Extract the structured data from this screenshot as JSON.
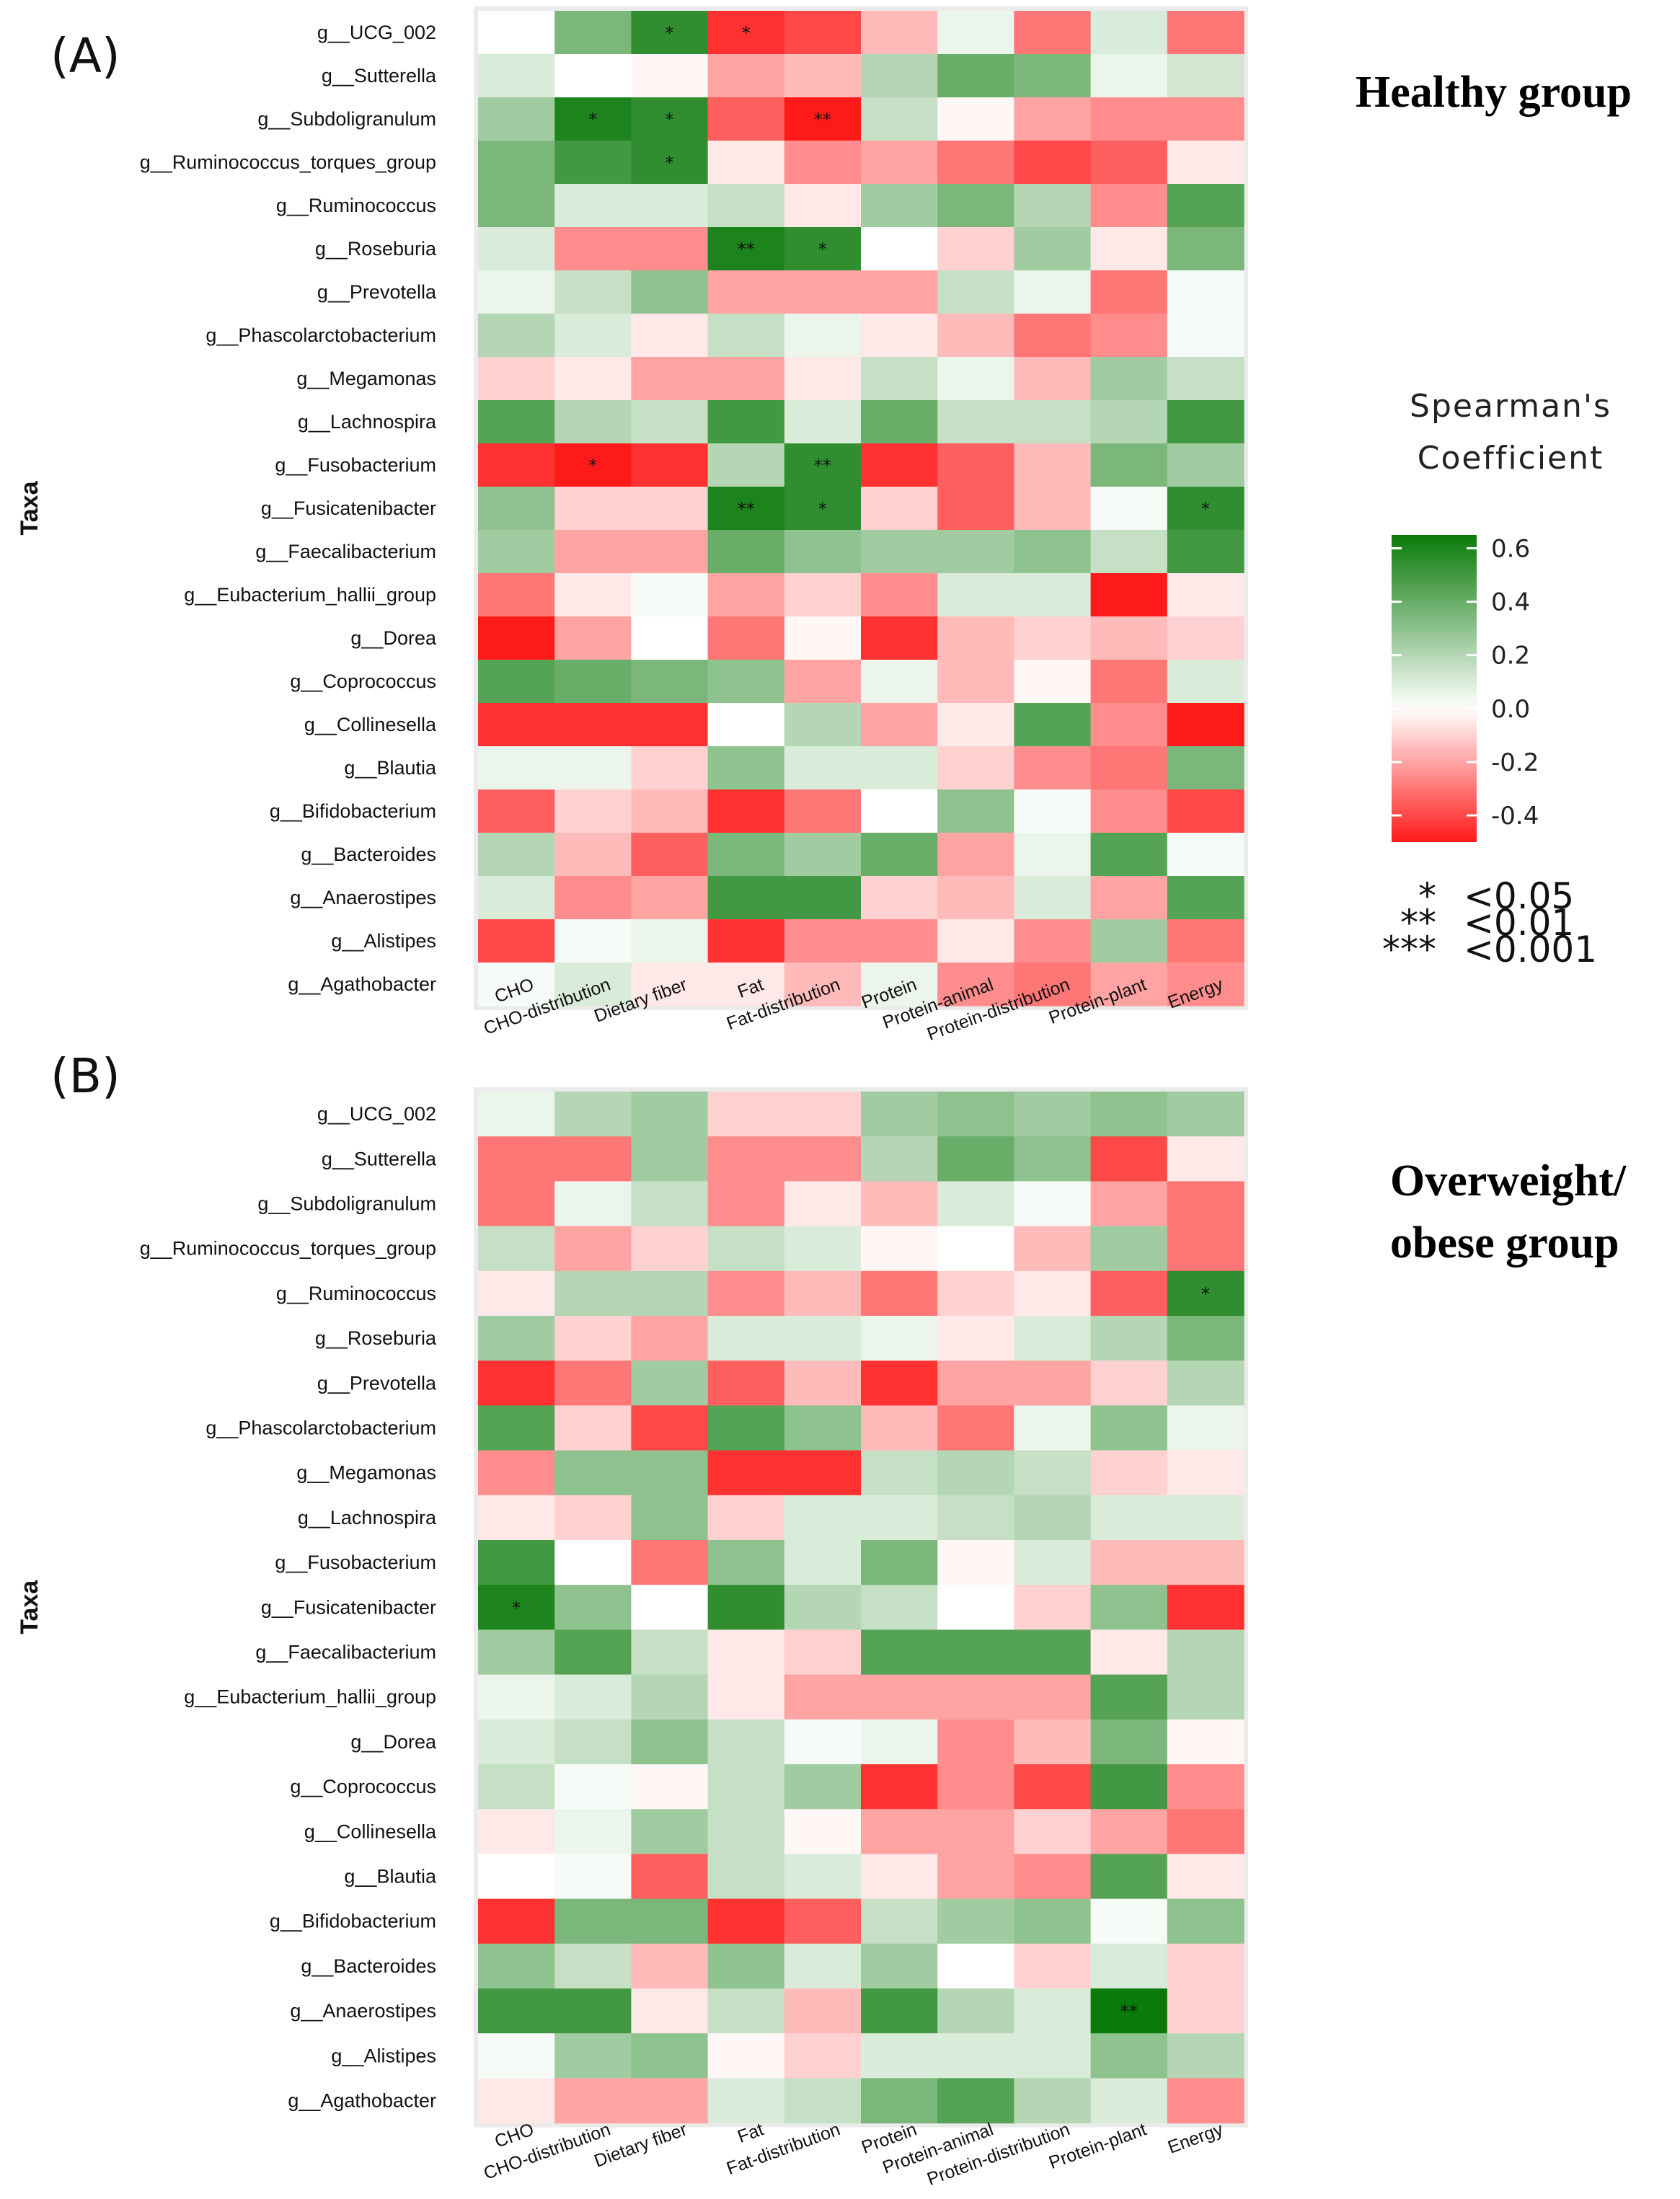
{
  "chart_data": [
    {
      "type": "heatmap",
      "panel_label": "(A)",
      "group_title": "Healthy group",
      "ylabel": "Taxa",
      "rows": [
        "g__UCG_002",
        "g__Sutterella",
        "g__Subdoligranulum",
        "g__Ruminococcus_torques_group",
        "g__Ruminococcus",
        "g__Roseburia",
        "g__Prevotella",
        "g__Phascolarctobacterium",
        "g__Megamonas",
        "g__Lachnospira",
        "g__Fusobacterium",
        "g__Fusicatenibacter",
        "g__Faecalibacterium",
        "g__Eubacterium_hallii_group",
        "g__Dorea",
        "g__Coprococcus",
        "g__Collinesella",
        "g__Blautia",
        "g__Bifidobacterium",
        "g__Bacteroides",
        "g__Anaerostipes",
        "g__Alistipes",
        "g__Agathobacter"
      ],
      "columns": [
        "CHO",
        "CHO-distribution",
        "Dietary fiber",
        "Fat",
        "Fat-distribution",
        "Protein",
        "Protein-animal",
        "Protein-distribution",
        "Protein-plant",
        "Energy"
      ],
      "values": [
        [
          0.0,
          0.35,
          0.55,
          -0.45,
          -0.4,
          -0.15,
          0.05,
          -0.3,
          0.1,
          -0.3
        ],
        [
          0.1,
          0.0,
          -0.02,
          -0.2,
          -0.15,
          0.2,
          0.4,
          0.35,
          0.05,
          0.12
        ],
        [
          0.25,
          0.6,
          0.55,
          -0.35,
          -0.55,
          0.15,
          -0.02,
          -0.2,
          -0.25,
          -0.25
        ],
        [
          0.35,
          0.5,
          0.55,
          -0.05,
          -0.25,
          -0.2,
          -0.3,
          -0.4,
          -0.35,
          -0.05
        ],
        [
          0.35,
          0.1,
          0.1,
          0.15,
          -0.05,
          0.25,
          0.35,
          0.2,
          -0.25,
          0.45
        ],
        [
          0.1,
          -0.25,
          -0.25,
          0.6,
          0.55,
          0.0,
          -0.1,
          0.25,
          -0.05,
          0.35
        ],
        [
          0.05,
          0.15,
          0.3,
          -0.2,
          -0.2,
          -0.2,
          0.15,
          0.05,
          -0.3,
          0.02
        ],
        [
          0.2,
          0.1,
          -0.05,
          0.15,
          0.05,
          -0.05,
          -0.15,
          -0.3,
          -0.25,
          0.02
        ],
        [
          -0.1,
          -0.05,
          -0.2,
          -0.2,
          -0.05,
          0.15,
          0.05,
          -0.15,
          0.25,
          0.15
        ],
        [
          0.45,
          0.2,
          0.15,
          0.5,
          0.1,
          0.4,
          0.15,
          0.15,
          0.2,
          0.5
        ],
        [
          -0.45,
          -0.5,
          -0.45,
          0.2,
          0.55,
          -0.45,
          -0.35,
          -0.15,
          0.35,
          0.25
        ],
        [
          0.3,
          -0.1,
          -0.1,
          0.6,
          0.55,
          -0.1,
          -0.35,
          -0.15,
          0.02,
          0.55
        ],
        [
          0.25,
          -0.2,
          -0.2,
          0.4,
          0.3,
          0.25,
          0.25,
          0.3,
          0.15,
          0.5
        ],
        [
          -0.3,
          -0.05,
          0.02,
          -0.2,
          -0.1,
          -0.25,
          0.1,
          0.1,
          -0.5,
          -0.05
        ],
        [
          -0.5,
          -0.2,
          0.0,
          -0.3,
          -0.02,
          -0.45,
          -0.15,
          -0.1,
          -0.15,
          -0.1
        ],
        [
          0.45,
          0.4,
          0.35,
          0.3,
          -0.2,
          0.05,
          -0.15,
          -0.02,
          -0.3,
          0.1
        ],
        [
          -0.45,
          -0.45,
          -0.45,
          0.0,
          0.2,
          -0.2,
          -0.05,
          0.45,
          -0.25,
          -0.5
        ],
        [
          0.05,
          0.05,
          -0.1,
          0.3,
          0.1,
          0.1,
          -0.1,
          -0.25,
          -0.3,
          0.35
        ],
        [
          -0.35,
          -0.1,
          -0.15,
          -0.45,
          -0.3,
          0.0,
          0.3,
          0.02,
          -0.25,
          -0.4
        ],
        [
          0.2,
          -0.15,
          -0.35,
          0.35,
          0.25,
          0.4,
          -0.2,
          0.05,
          0.45,
          0.02
        ],
        [
          0.1,
          -0.25,
          -0.2,
          0.5,
          0.5,
          -0.1,
          -0.15,
          0.1,
          -0.2,
          0.45
        ],
        [
          -0.4,
          0.02,
          0.05,
          -0.45,
          -0.25,
          -0.25,
          -0.05,
          -0.25,
          0.25,
          -0.3
        ],
        [
          0.02,
          0.1,
          -0.05,
          -0.05,
          -0.15,
          0.05,
          -0.25,
          -0.3,
          -0.2,
          -0.25
        ]
      ],
      "significance": [
        [
          0,
          2,
          "*"
        ],
        [
          0,
          3,
          "*"
        ],
        [
          2,
          1,
          "*"
        ],
        [
          2,
          2,
          "*"
        ],
        [
          2,
          4,
          "**"
        ],
        [
          3,
          2,
          "*"
        ],
        [
          5,
          3,
          "**"
        ],
        [
          5,
          4,
          "*"
        ],
        [
          10,
          1,
          "*"
        ],
        [
          10,
          4,
          "**"
        ],
        [
          11,
          3,
          "**"
        ],
        [
          11,
          4,
          "*"
        ],
        [
          11,
          9,
          "*"
        ]
      ]
    },
    {
      "type": "heatmap",
      "panel_label": "(B)",
      "group_title": "Overweight/ obese group",
      "group_title_lines": [
        "Overweight/",
        "obese group"
      ],
      "ylabel": "Taxa",
      "rows": [
        "g__UCG_002",
        "g__Sutterella",
        "g__Subdoligranulum",
        "g__Ruminococcus_torques_group",
        "g__Ruminococcus",
        "g__Roseburia",
        "g__Prevotella",
        "g__Phascolarctobacterium",
        "g__Megamonas",
        "g__Lachnospira",
        "g__Fusobacterium",
        "g__Fusicatenibacter",
        "g__Faecalibacterium",
        "g__Eubacterium_hallii_group",
        "g__Dorea",
        "g__Coprococcus",
        "g__Collinesella",
        "g__Blautia",
        "g__Bifidobacterium",
        "g__Bacteroides",
        "g__Anaerostipes",
        "g__Alistipes",
        "g__Agathobacter"
      ],
      "columns": [
        "CHO",
        "CHO-distribution",
        "Dietary fiber",
        "Fat",
        "Fat-distribution",
        "Protein",
        "Protein-animal",
        "Protein-distribution",
        "Protein-plant",
        "Energy"
      ],
      "values": [
        [
          0.05,
          0.2,
          0.25,
          -0.1,
          -0.1,
          0.25,
          0.3,
          0.25,
          0.3,
          0.25
        ],
        [
          -0.3,
          -0.3,
          0.25,
          -0.25,
          -0.25,
          0.2,
          0.4,
          0.3,
          -0.4,
          -0.05
        ],
        [
          -0.3,
          0.05,
          0.15,
          -0.25,
          -0.05,
          -0.15,
          0.1,
          0.02,
          -0.2,
          -0.3
        ],
        [
          0.15,
          -0.2,
          -0.1,
          0.15,
          0.1,
          -0.02,
          0.0,
          -0.15,
          0.25,
          -0.3
        ],
        [
          -0.05,
          0.2,
          0.2,
          -0.25,
          -0.15,
          -0.3,
          -0.1,
          -0.05,
          -0.35,
          0.55
        ],
        [
          0.25,
          -0.1,
          -0.2,
          0.1,
          0.1,
          0.05,
          -0.05,
          0.1,
          0.2,
          0.35
        ],
        [
          -0.45,
          -0.3,
          0.25,
          -0.35,
          -0.15,
          -0.45,
          -0.2,
          -0.2,
          -0.1,
          0.2
        ],
        [
          0.45,
          -0.1,
          -0.4,
          0.45,
          0.3,
          -0.15,
          -0.3,
          0.05,
          0.3,
          0.05
        ],
        [
          -0.25,
          0.3,
          0.3,
          -0.45,
          -0.45,
          0.15,
          0.2,
          0.15,
          -0.1,
          -0.05
        ],
        [
          -0.05,
          -0.1,
          0.3,
          -0.1,
          0.1,
          0.1,
          0.15,
          0.2,
          0.1,
          0.1
        ],
        [
          0.5,
          0.0,
          -0.3,
          0.3,
          0.1,
          0.35,
          -0.02,
          0.1,
          -0.15,
          -0.15
        ],
        [
          0.6,
          0.3,
          0.0,
          0.55,
          0.2,
          0.15,
          0.0,
          -0.1,
          0.3,
          -0.45
        ],
        [
          0.25,
          0.45,
          0.15,
          -0.05,
          -0.1,
          0.45,
          0.45,
          0.45,
          -0.05,
          0.2
        ],
        [
          0.05,
          0.1,
          0.2,
          -0.05,
          -0.2,
          -0.2,
          -0.2,
          -0.2,
          0.45,
          0.2
        ],
        [
          0.1,
          0.15,
          0.3,
          0.15,
          0.02,
          0.05,
          -0.25,
          -0.15,
          0.35,
          -0.02
        ],
        [
          0.15,
          0.02,
          -0.02,
          0.15,
          0.25,
          -0.45,
          -0.25,
          -0.4,
          0.5,
          -0.25
        ],
        [
          -0.05,
          0.05,
          0.25,
          0.15,
          -0.02,
          -0.2,
          -0.2,
          -0.1,
          -0.2,
          -0.3
        ],
        [
          0.0,
          0.02,
          -0.35,
          0.15,
          0.1,
          -0.05,
          -0.2,
          -0.25,
          0.45,
          -0.05
        ],
        [
          -0.45,
          0.35,
          0.35,
          -0.45,
          -0.35,
          0.15,
          0.25,
          0.3,
          0.02,
          0.3
        ],
        [
          0.3,
          0.15,
          -0.15,
          0.3,
          0.1,
          0.25,
          0.0,
          -0.1,
          0.1,
          -0.1
        ],
        [
          0.5,
          0.5,
          -0.05,
          0.15,
          -0.15,
          0.5,
          0.2,
          0.1,
          0.65,
          -0.1
        ],
        [
          0.02,
          0.25,
          0.3,
          -0.02,
          -0.1,
          0.1,
          0.1,
          0.1,
          0.3,
          0.2
        ],
        [
          -0.05,
          -0.2,
          -0.2,
          0.1,
          0.15,
          0.35,
          0.45,
          0.2,
          0.1,
          -0.25
        ]
      ],
      "significance": [
        [
          4,
          9,
          "*"
        ],
        [
          11,
          0,
          "*"
        ],
        [
          20,
          8,
          "**"
        ]
      ]
    }
  ],
  "legend": {
    "title_lines": [
      "Spearman's",
      "Coefficient"
    ],
    "ticks": [
      "0.6",
      "0.4",
      "0.2",
      "0.0",
      "-0.2",
      "-0.4"
    ],
    "tick_values": [
      0.6,
      0.4,
      0.2,
      0.0,
      -0.2,
      -0.4
    ],
    "range": [
      -0.5,
      0.65
    ],
    "colors": {
      "positive": "#0a7a0a",
      "zero": "#ffffff",
      "negative": "#ff1a1a"
    }
  },
  "significance_key": [
    {
      "stars": "*",
      "label": "<0.05"
    },
    {
      "stars": "**",
      "label": "<0.01"
    },
    {
      "stars": "***",
      "label": "<0.001"
    }
  ]
}
